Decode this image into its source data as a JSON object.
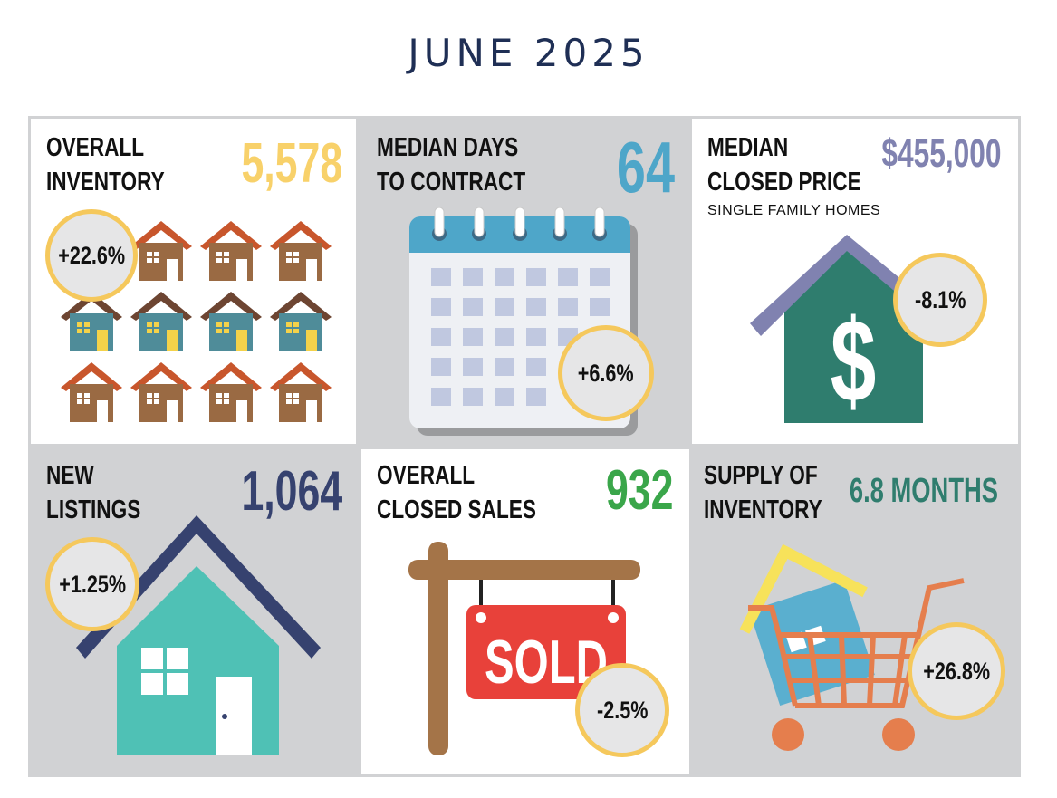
{
  "title": "JUNE 2025",
  "tiles": {
    "overall_inventory": {
      "label1": "OVERALL",
      "label2": "INVENTORY",
      "value": "5,578",
      "change": "+22.6%"
    },
    "median_days": {
      "label1": "MEDIAN DAYS",
      "label2": "TO CONTRACT",
      "value": "64",
      "change": "+6.6%"
    },
    "median_price": {
      "label1": "MEDIAN",
      "label2": "CLOSED PRICE",
      "sublabel": "SINGLE FAMILY HOMES",
      "value": "$455,000",
      "change": "-8.1%"
    },
    "new_listings": {
      "label1": "NEW",
      "label2": "LISTINGS",
      "value": "1,064",
      "change": "+1.25%"
    },
    "closed_sales": {
      "label1": "OVERALL",
      "label2": "CLOSED SALES",
      "value": "932",
      "change": "-2.5%",
      "sign_text": "SOLD"
    },
    "supply": {
      "label1": "SUPPLY OF",
      "label2": "INVENTORY",
      "value": "6.8 MONTHS",
      "change": "+26.8%"
    }
  },
  "colors": {
    "title": "#1f2f55",
    "inventory_value": "#f8d16a",
    "days_value": "#4ea6c9",
    "price_value": "#8082b0",
    "listings_value": "#36426f",
    "sales_value": "#3aa64a",
    "supply_value": "#2f7d6e",
    "badge_ring": "#f5c85c"
  },
  "icons": [
    "house-grid-icon",
    "calendar-icon",
    "dollar-house-icon",
    "house-icon",
    "sold-sign-icon",
    "shopping-cart-icon"
  ]
}
